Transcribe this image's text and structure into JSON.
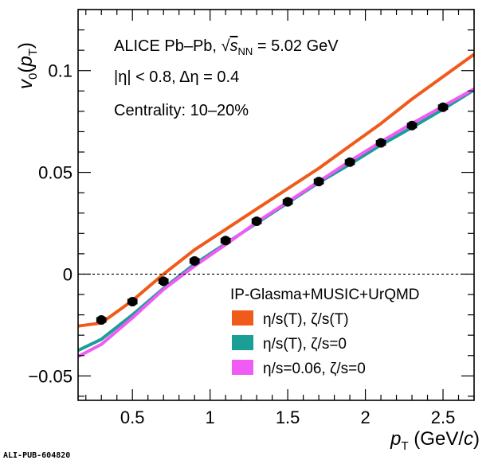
{
  "chart_data": {
    "type": "line",
    "xlabel_symbol": "p",
    "xlabel_sub": "T",
    "xlabel_units": " (GeV/",
    "xlabel_units_c": "c",
    "xlabel_units_close": ")",
    "ylabel_symbol": "v",
    "ylabel_sub": "0",
    "ylabel_paren_open": "(",
    "ylabel_paren_symbol": "p",
    "ylabel_paren_sub": "T",
    "ylabel_paren_close": ")",
    "xlim": [
      0.15,
      2.7
    ],
    "ylim": [
      -0.062,
      0.13
    ],
    "x_ticks": [
      0.5,
      1,
      1.5,
      2,
      2.5
    ],
    "x_tick_labels": [
      "0.5",
      "1",
      "1.5",
      "2",
      "2.5"
    ],
    "y_ticks": [
      -0.05,
      0,
      0.05,
      0.1
    ],
    "y_tick_labels": [
      "−0.05",
      "0",
      "0.05",
      "0.1"
    ],
    "zero_line": true,
    "annotations": {
      "line1_prefix": "ALICE Pb–Pb, ",
      "line1_sqrt_s": "s",
      "line1_sqrt_sub": "NN",
      "line1_suffix": " = 5.02 GeV",
      "line2": "|η| < 0.8, Δη = 0.4",
      "line3": "Centrality: 10–20%"
    },
    "legend": {
      "title": "IP-Glasma+MUSIC+UrQMD",
      "placement": "bottom-right",
      "entries": [
        {
          "label": "η/s(T), ζ/s(T)",
          "color": "#f05a1a"
        },
        {
          "label": "η/s(T), ζ/s=0",
          "color": "#1a9e96"
        },
        {
          "label": "η/s=0.06, ζ/s=0",
          "color": "#f05af5"
        }
      ]
    },
    "series": [
      {
        "name": "η/s(T), ζ/s(T)",
        "kind": "band",
        "color": "#f05a1a",
        "x": [
          0.15,
          0.3,
          0.5,
          0.7,
          0.9,
          1.1,
          1.3,
          1.5,
          1.7,
          1.9,
          2.1,
          2.3,
          2.5,
          2.7
        ],
        "y": [
          -0.0255,
          -0.024,
          -0.013,
          0.0,
          0.012,
          0.022,
          0.032,
          0.042,
          0.052,
          0.063,
          0.074,
          0.086,
          0.097,
          0.108
        ]
      },
      {
        "name": "η/s(T), ζ/s=0",
        "kind": "band",
        "color": "#1a9e96",
        "x": [
          0.15,
          0.3,
          0.5,
          0.7,
          0.9,
          1.1,
          1.3,
          1.5,
          1.7,
          1.9,
          2.1,
          2.3,
          2.5,
          2.7
        ],
        "y": [
          -0.0375,
          -0.032,
          -0.02,
          -0.007,
          0.005,
          0.015,
          0.025,
          0.035,
          0.045,
          0.054,
          0.0635,
          0.072,
          0.081,
          0.0905
        ]
      },
      {
        "name": "η/s=0.06, ζ/s=0",
        "kind": "band",
        "color": "#f05af5",
        "x": [
          0.15,
          0.3,
          0.5,
          0.7,
          0.9,
          1.1,
          1.3,
          1.5,
          1.7,
          1.9,
          2.1,
          2.3,
          2.5,
          2.7
        ],
        "y": [
          -0.0405,
          -0.0345,
          -0.0215,
          -0.0075,
          0.004,
          0.0145,
          0.0255,
          0.0355,
          0.0455,
          0.0555,
          0.065,
          0.074,
          0.0825,
          0.091
        ]
      },
      {
        "kind": "points",
        "color": "#000000",
        "x": [
          0.3,
          0.5,
          0.7,
          0.9,
          1.1,
          1.3,
          1.5,
          1.7,
          1.9,
          2.1,
          2.3,
          2.5
        ],
        "y": [
          -0.0225,
          -0.0135,
          -0.0035,
          0.0065,
          0.0165,
          0.026,
          0.0355,
          0.0455,
          0.055,
          0.0645,
          0.073,
          0.082
        ],
        "syst_halfwidth_x": 0.03
      }
    ],
    "footer_id": "ALI-PUB-604820"
  }
}
